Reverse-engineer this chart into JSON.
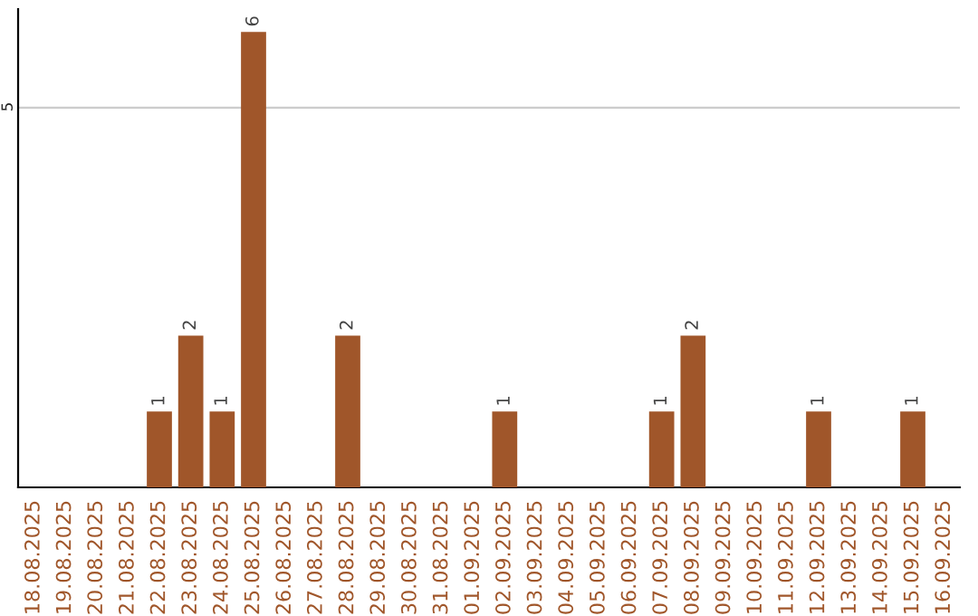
{
  "chart_data": {
    "type": "bar",
    "categories": [
      "18.08.2025",
      "19.08.2025",
      "20.08.2025",
      "21.08.2025",
      "22.08.2025",
      "23.08.2025",
      "24.08.2025",
      "25.08.2025",
      "26.08.2025",
      "27.08.2025",
      "28.08.2025",
      "29.08.2025",
      "30.08.2025",
      "31.08.2025",
      "01.09.2025",
      "02.09.2025",
      "03.09.2025",
      "04.09.2025",
      "05.09.2025",
      "06.09.2025",
      "07.09.2025",
      "08.09.2025",
      "09.09.2025",
      "10.09.2025",
      "11.09.2025",
      "12.09.2025",
      "13.09.2025",
      "14.09.2025",
      "15.09.2025",
      "16.09.2025"
    ],
    "values": [
      0,
      0,
      0,
      0,
      1,
      2,
      1,
      6,
      0,
      0,
      2,
      0,
      0,
      0,
      0,
      1,
      0,
      0,
      0,
      0,
      1,
      2,
      0,
      0,
      0,
      1,
      0,
      0,
      1,
      0
    ],
    "value_labels": [
      null,
      null,
      null,
      null,
      "1",
      "2",
      "1",
      "6",
      null,
      null,
      "2",
      null,
      null,
      null,
      null,
      "1",
      null,
      null,
      null,
      null,
      "1",
      "2",
      null,
      null,
      null,
      "1",
      null,
      null,
      "1",
      null
    ],
    "color": "#a0562a",
    "ylim": [
      0,
      6.3
    ],
    "yticks": [
      5
    ],
    "grid": "y",
    "legend": false
  }
}
